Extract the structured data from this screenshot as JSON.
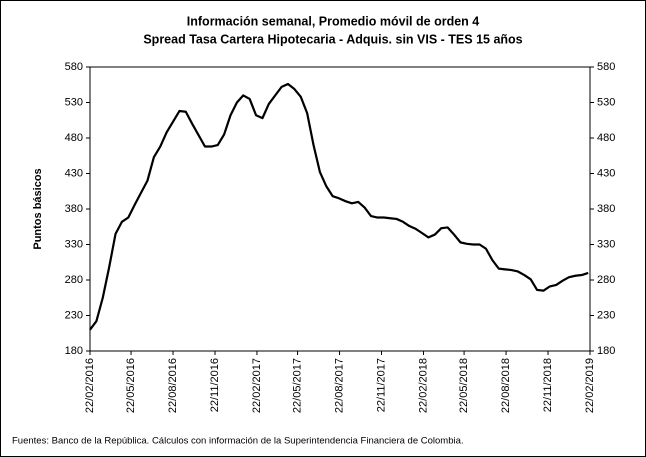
{
  "chart_data": {
    "type": "line",
    "title": "Información semanal, Promedio móvil de orden 4",
    "subtitle": "Spread Tasa Cartera Hipotecaria - Adquis. sin VIS -  TES 15 años",
    "y_label": "Puntos básicos",
    "source": "Fuentes: Banco de la República. Cálculos con información de la Superintendencia Financiera de Colombia.",
    "x": [
      "2016-02-22",
      "2016-03-07",
      "2016-03-21",
      "2016-04-04",
      "2016-04-18",
      "2016-05-02",
      "2016-05-16",
      "2016-05-30",
      "2016-06-13",
      "2016-06-27",
      "2016-07-11",
      "2016-07-25",
      "2016-08-08",
      "2016-08-22",
      "2016-09-05",
      "2016-09-19",
      "2016-10-03",
      "2016-10-17",
      "2016-10-31",
      "2016-11-14",
      "2016-11-28",
      "2016-12-12",
      "2016-12-26",
      "2017-01-09",
      "2017-01-23",
      "2017-02-06",
      "2017-02-20",
      "2017-03-06",
      "2017-03-20",
      "2017-04-03",
      "2017-04-17",
      "2017-05-01",
      "2017-05-15",
      "2017-05-29",
      "2017-06-12",
      "2017-06-26",
      "2017-07-10",
      "2017-07-24",
      "2017-08-07",
      "2017-08-21",
      "2017-09-04",
      "2017-09-18",
      "2017-10-02",
      "2017-10-16",
      "2017-10-30",
      "2017-11-13",
      "2017-11-27",
      "2017-12-11",
      "2017-12-25",
      "2018-01-08",
      "2018-01-22",
      "2018-02-05",
      "2018-02-19",
      "2018-03-05",
      "2018-03-19",
      "2018-04-02",
      "2018-04-16",
      "2018-04-30",
      "2018-05-14",
      "2018-05-28",
      "2018-06-11",
      "2018-06-25",
      "2018-07-09",
      "2018-07-23",
      "2018-08-06",
      "2018-08-20",
      "2018-09-03",
      "2018-09-17",
      "2018-10-01",
      "2018-10-15",
      "2018-10-29",
      "2018-11-12",
      "2018-11-26",
      "2018-12-10",
      "2018-12-24",
      "2019-01-07",
      "2019-01-21",
      "2019-02-04",
      "2019-02-18"
    ],
    "series": [
      {
        "name": "Spread",
        "color": "#000000",
        "values": [
          210,
          222,
          255,
          298,
          345,
          362,
          368,
          386,
          403,
          420,
          453,
          468,
          488,
          503,
          518,
          517,
          500,
          484,
          468,
          468,
          470,
          485,
          512,
          530,
          540,
          535,
          512,
          508,
          528,
          540,
          552,
          556,
          549,
          538,
          515,
          470,
          432,
          412,
          398,
          395,
          391,
          388,
          390,
          382,
          370,
          368,
          368,
          367,
          366,
          362,
          356,
          352,
          346,
          340,
          344,
          353,
          354,
          344,
          333,
          331,
          330,
          330,
          324,
          308,
          296,
          295,
          294,
          292,
          287,
          281,
          266,
          265,
          271,
          273,
          279,
          284,
          286,
          287,
          290
        ]
      }
    ],
    "xlim": [
      "2016-02-22",
      "2019-02-22"
    ],
    "xticks": [
      {
        "value": "2016-02-22",
        "label": "22/02/2016"
      },
      {
        "value": "2016-05-22",
        "label": "22/05/2016"
      },
      {
        "value": "2016-08-22",
        "label": "22/08/2016"
      },
      {
        "value": "2016-11-22",
        "label": "22/11/2016"
      },
      {
        "value": "2017-02-22",
        "label": "22/02/2017"
      },
      {
        "value": "2017-05-22",
        "label": "22/05/2017"
      },
      {
        "value": "2017-08-22",
        "label": "22/08/2017"
      },
      {
        "value": "2017-11-22",
        "label": "22/11/2017"
      },
      {
        "value": "2018-02-22",
        "label": "22/02/2018"
      },
      {
        "value": "2018-05-22",
        "label": "22/05/2018"
      },
      {
        "value": "2018-08-22",
        "label": "22/08/2018"
      },
      {
        "value": "2018-11-22",
        "label": "22/11/2018"
      },
      {
        "value": "2019-02-22",
        "label": "22/02/2019"
      }
    ],
    "ylim": [
      180,
      580
    ],
    "yticks": [
      180,
      230,
      280,
      330,
      380,
      430,
      480,
      530,
      580
    ],
    "grid": false
  }
}
